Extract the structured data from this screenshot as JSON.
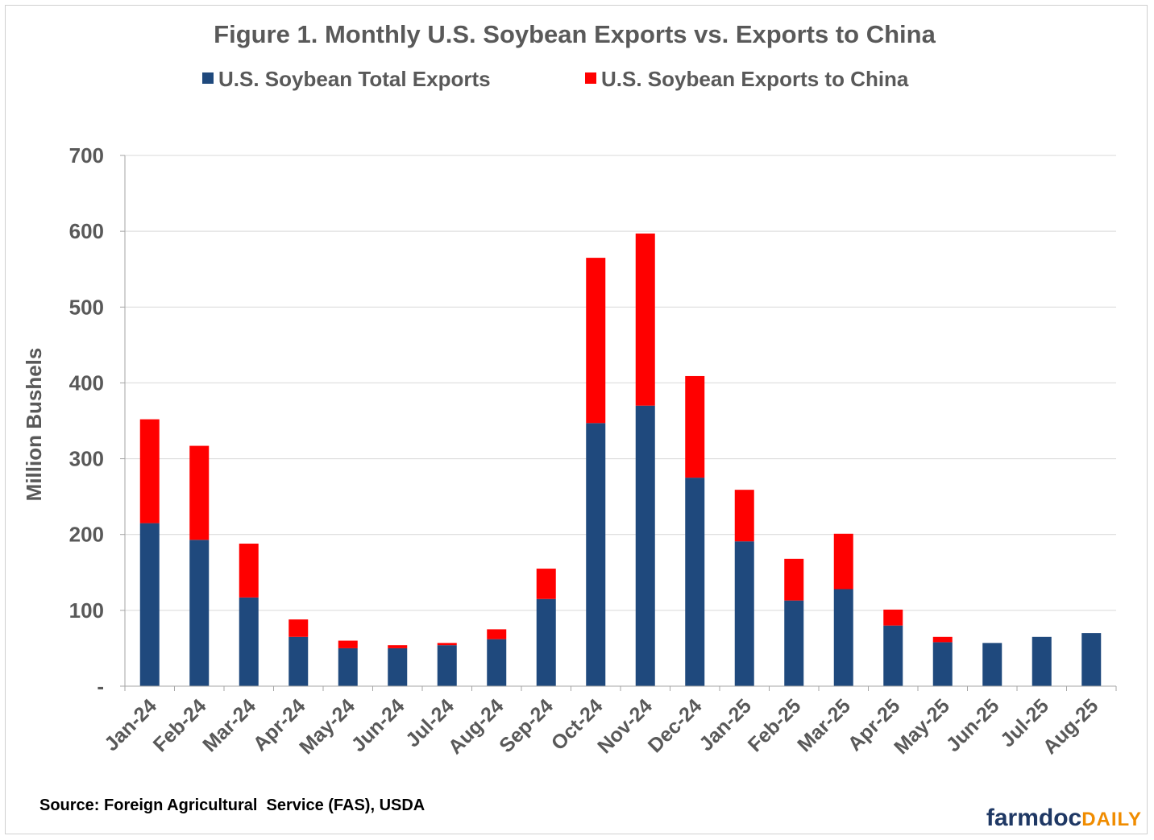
{
  "chart_data": {
    "type": "bar",
    "stacked": true,
    "title": "Figure 1. Monthly U.S. Soybean Exports vs. Exports to China",
    "xlabel": "",
    "ylabel": "Million Bushels",
    "ylim": [
      0,
      700
    ],
    "yticks": [
      {
        "value": 0,
        "label": "-"
      },
      {
        "value": 100,
        "label": "100"
      },
      {
        "value": 200,
        "label": "200"
      },
      {
        "value": 300,
        "label": "300"
      },
      {
        "value": 400,
        "label": "400"
      },
      {
        "value": 500,
        "label": "500"
      },
      {
        "value": 600,
        "label": "600"
      },
      {
        "value": 700,
        "label": "700"
      }
    ],
    "grid": true,
    "legend_position": "top-center",
    "categories": [
      "Jan-24",
      "Feb-24",
      "Mar-24",
      "Apr-24",
      "May-24",
      "Jun-24",
      "Jul-24",
      "Aug-24",
      "Sep-24",
      "Oct-24",
      "Nov-24",
      "Dec-24",
      "Jan-25",
      "Feb-25",
      "Mar-25",
      "Apr-25",
      "May-25",
      "Jun-25",
      "Jul-25",
      "Aug-25"
    ],
    "series": [
      {
        "name": "U.S. Soybean Total Exports",
        "color": "#1f497d",
        "values": [
          215,
          193,
          117,
          65,
          50,
          50,
          54,
          62,
          115,
          347,
          370,
          275,
          191,
          113,
          128,
          80,
          58,
          57,
          65,
          70
        ]
      },
      {
        "name": "U.S. Soybean Exports to China",
        "color": "#ff0000",
        "values": [
          137,
          124,
          71,
          23,
          10,
          4,
          3,
          13,
          40,
          218,
          227,
          134,
          68,
          55,
          73,
          21,
          7,
          0,
          0,
          0
        ]
      }
    ],
    "source": "Source: Foreign Agricultural  Service (FAS), USDA"
  },
  "branding": {
    "logo_part1": "farmdoc",
    "logo_part2": "DAILY",
    "color_part1": "#1f3864",
    "color_part2": "#f08c00"
  },
  "colors": {
    "text": "#595959",
    "grid": "#d9d9d9",
    "axis": "#a6a6a6"
  }
}
